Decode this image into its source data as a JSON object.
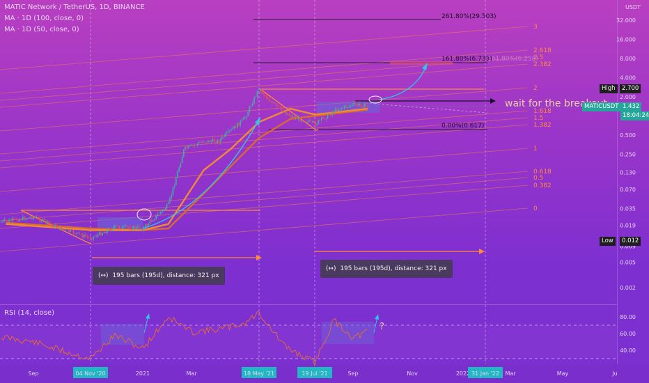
{
  "header": {
    "symbol_line": "MATIC Network / TetherUS, 1D, BINANCE",
    "ma1": "MA · 1D (100, close, 0)",
    "ma2": "MA · 1D (50, close, 0)"
  },
  "rsi": {
    "label": "RSI (14, close)",
    "ticks": [
      "80.00",
      "60.00",
      "40.00"
    ]
  },
  "currency_label": "USDT",
  "price_axis_ticks": [
    "32.000",
    "16.000",
    "8.000",
    "4.000",
    "2.000",
    "1.000",
    "0.500",
    "0.250",
    "0.130",
    "0.070",
    "0.035",
    "0.019",
    "0.009",
    "0.005",
    "0.002"
  ],
  "time_axis": {
    "labels": [
      "Sep",
      "2021",
      "Mar",
      "M",
      "J",
      "Sep",
      "Nov",
      "2022",
      "Mar",
      "May",
      "Ju"
    ],
    "highlighted": [
      "04 Nov '20",
      "18 May '21",
      "19 Jul '21",
      "31 Jan '22"
    ]
  },
  "price_tags": {
    "high_label": "High",
    "high_value": "2.700",
    "symbol": "MATICUSDT",
    "last": "1.432",
    "countdown": "18:04:24",
    "low_label": "Low",
    "low_value": "0.012"
  },
  "fib_retracement": [
    "261.80%(29.503)",
    "161.80%(6.733)",
    "0.00%(0.617)"
  ],
  "fib_faded_label": "161.80%(6.258)",
  "fib_channel_levels": [
    "3",
    "2.618",
    "2.5",
    "2.382",
    "2",
    "1.618",
    "1.5",
    "1.382",
    "1",
    "0.618",
    "0.5",
    "0.382",
    "0"
  ],
  "annotations": {
    "breakout": "wait for the breakout",
    "question": "?"
  },
  "bar_ranges": [
    "195 bars (195d), distance: 321 px",
    "195 bars (195d), distance: 321 px"
  ],
  "range_icon": "(↔)",
  "colors": {
    "orange": "#ff8a3d",
    "cyan": "#2ec7e8",
    "green": "#26a69a",
    "rsi_line": "#e06a3a"
  },
  "chart_data": [
    {
      "type": "line",
      "title": "MATIC Network / TetherUS, 1D, BINANCE",
      "scale": "log",
      "ylim": [
        0.0015,
        45
      ],
      "x_labels": [
        "Sep",
        "2021",
        "Mar",
        "M",
        "J",
        "Sep",
        "Nov",
        "2022",
        "Mar",
        "May",
        "Ju"
      ],
      "series": [
        {
          "name": "MATIC Network / TetherUS",
          "x": [
            "2020-08-01",
            "2020-09-01",
            "2020-10-01",
            "2020-11-04",
            "2020-12-01",
            "2021-01-01",
            "2021-02-01",
            "2021-02-20",
            "2021-03-15",
            "2021-04-01",
            "2021-05-01",
            "2021-05-18",
            "2021-06-01",
            "2021-06-22",
            "2021-07-19",
            "2021-08-15",
            "2021-09-01",
            "2021-09-16"
          ],
          "values": [
            0.022,
            0.026,
            0.017,
            0.012,
            0.018,
            0.017,
            0.04,
            0.3,
            0.4,
            0.4,
            0.9,
            2.7,
            1.6,
            1.0,
            0.75,
            1.3,
            1.5,
            1.432
          ]
        },
        {
          "name": "MA · 1D (50, close, 0)",
          "x": [
            "2020-08-01",
            "2020-11-04",
            "2021-01-01",
            "2021-02-01",
            "2021-03-15",
            "2021-04-15",
            "2021-05-18",
            "2021-06-22",
            "2021-07-19",
            "2021-09-16"
          ],
          "values": [
            0.02,
            0.016,
            0.016,
            0.02,
            0.14,
            0.3,
            0.8,
            1.3,
            1.05,
            1.3
          ]
        },
        {
          "name": "MA · 1D (100, close, 0)",
          "x": [
            "2020-08-01",
            "2020-11-04",
            "2021-01-01",
            "2021-02-01",
            "2021-03-15",
            "2021-04-15",
            "2021-05-18",
            "2021-06-22",
            "2021-07-19",
            "2021-09-16"
          ],
          "values": [
            0.021,
            0.017,
            0.016,
            0.017,
            0.06,
            0.16,
            0.45,
            0.9,
            1.0,
            1.25
          ]
        }
      ]
    },
    {
      "type": "line",
      "title": "RSI (14, close)",
      "ylim": [
        20,
        85
      ],
      "series": [
        {
          "name": "RSI (14, close)",
          "x": [
            "2020-08-01",
            "2020-09-01",
            "2020-10-01",
            "2020-11-04",
            "2020-12-01",
            "2021-01-01",
            "2021-02-01",
            "2021-03-01",
            "2021-04-01",
            "2021-05-01",
            "2021-05-18",
            "2021-06-15",
            "2021-07-19",
            "2021-08-10",
            "2021-09-01",
            "2021-09-16"
          ],
          "values": [
            55,
            50,
            40,
            30,
            58,
            42,
            80,
            62,
            65,
            72,
            85,
            45,
            25,
            76,
            55,
            62
          ]
        }
      ]
    }
  ]
}
